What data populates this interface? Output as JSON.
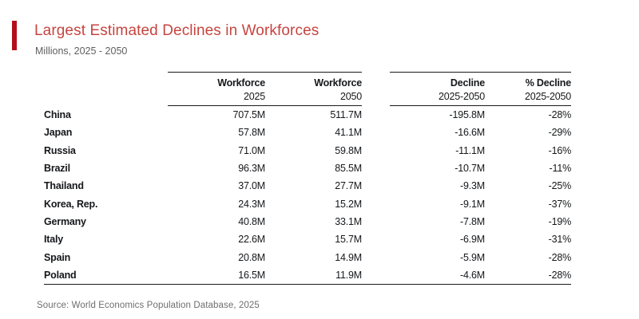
{
  "header": {
    "title": "Largest Estimated Declines in Workforces",
    "subtitle": "Millions, 2025 - 2050"
  },
  "table": {
    "columns": [
      {
        "id": "country",
        "line1": "",
        "line2": ""
      },
      {
        "id": "workforce_2025",
        "line1": "Workforce",
        "line2": "2025"
      },
      {
        "id": "workforce_2050",
        "line1": "Workforce",
        "line2": "2050"
      },
      {
        "id": "decline",
        "line1": "Decline",
        "line2": "2025-2050"
      },
      {
        "id": "pct_decline",
        "line1": "% Decline",
        "line2": "2025-2050"
      }
    ],
    "rows": [
      {
        "country": "China",
        "workforce_2025": "707.5M",
        "workforce_2050": "511.7M",
        "decline": "-195.8M",
        "pct_decline": "-28%"
      },
      {
        "country": "Japan",
        "workforce_2025": "57.8M",
        "workforce_2050": "41.1M",
        "decline": "-16.6M",
        "pct_decline": "-29%"
      },
      {
        "country": "Russia",
        "workforce_2025": "71.0M",
        "workforce_2050": "59.8M",
        "decline": "-11.1M",
        "pct_decline": "-16%"
      },
      {
        "country": "Brazil",
        "workforce_2025": "96.3M",
        "workforce_2050": "85.5M",
        "decline": "-10.7M",
        "pct_decline": "-11%"
      },
      {
        "country": "Thailand",
        "workforce_2025": "37.0M",
        "workforce_2050": "27.7M",
        "decline": "-9.3M",
        "pct_decline": "-25%"
      },
      {
        "country": "Korea, Rep.",
        "workforce_2025": "24.3M",
        "workforce_2050": "15.2M",
        "decline": "-9.1M",
        "pct_decline": "-37%"
      },
      {
        "country": "Germany",
        "workforce_2025": "40.8M",
        "workforce_2050": "33.1M",
        "decline": "-7.8M",
        "pct_decline": "-19%"
      },
      {
        "country": "Italy",
        "workforce_2025": "22.6M",
        "workforce_2050": "15.7M",
        "decline": "-6.9M",
        "pct_decline": "-31%"
      },
      {
        "country": "Spain",
        "workforce_2025": "20.8M",
        "workforce_2050": "14.9M",
        "decline": "-5.9M",
        "pct_decline": "-28%"
      },
      {
        "country": "Poland",
        "workforce_2025": "16.5M",
        "workforce_2050": "11.9M",
        "decline": "-4.6M",
        "pct_decline": "-28%"
      }
    ]
  },
  "footer": {
    "source": "Source: World Economics Population Database, 2025"
  },
  "colors": {
    "accent_bar": "#b30f1a",
    "title": "#c64540",
    "subtitle": "#5f5f5f",
    "source": "#6e6e6e",
    "text": "#15171a",
    "rule": "#1a1a1a"
  },
  "chart_data": {
    "type": "table",
    "title": "Largest Estimated Declines in Workforces",
    "subtitle": "Millions, 2025 - 2050",
    "categories": [
      "China",
      "Japan",
      "Russia",
      "Brazil",
      "Thailand",
      "Korea, Rep.",
      "Germany",
      "Italy",
      "Spain",
      "Poland"
    ],
    "series": [
      {
        "name": "Workforce 2025 (M)",
        "values": [
          707.5,
          57.8,
          71.0,
          96.3,
          37.0,
          24.3,
          40.8,
          22.6,
          20.8,
          16.5
        ]
      },
      {
        "name": "Workforce 2050 (M)",
        "values": [
          511.7,
          41.1,
          59.8,
          85.5,
          27.7,
          15.2,
          33.1,
          15.7,
          14.9,
          11.9
        ]
      },
      {
        "name": "Decline 2025-2050 (M)",
        "values": [
          -195.8,
          -16.6,
          -11.1,
          -10.7,
          -9.3,
          -9.1,
          -7.8,
          -6.9,
          -5.9,
          -4.6
        ]
      },
      {
        "name": "% Decline 2025-2050",
        "values": [
          -28,
          -29,
          -16,
          -11,
          -25,
          -37,
          -19,
          -31,
          -28,
          -28
        ]
      }
    ],
    "source": "Source: World Economics Population Database, 2025"
  }
}
